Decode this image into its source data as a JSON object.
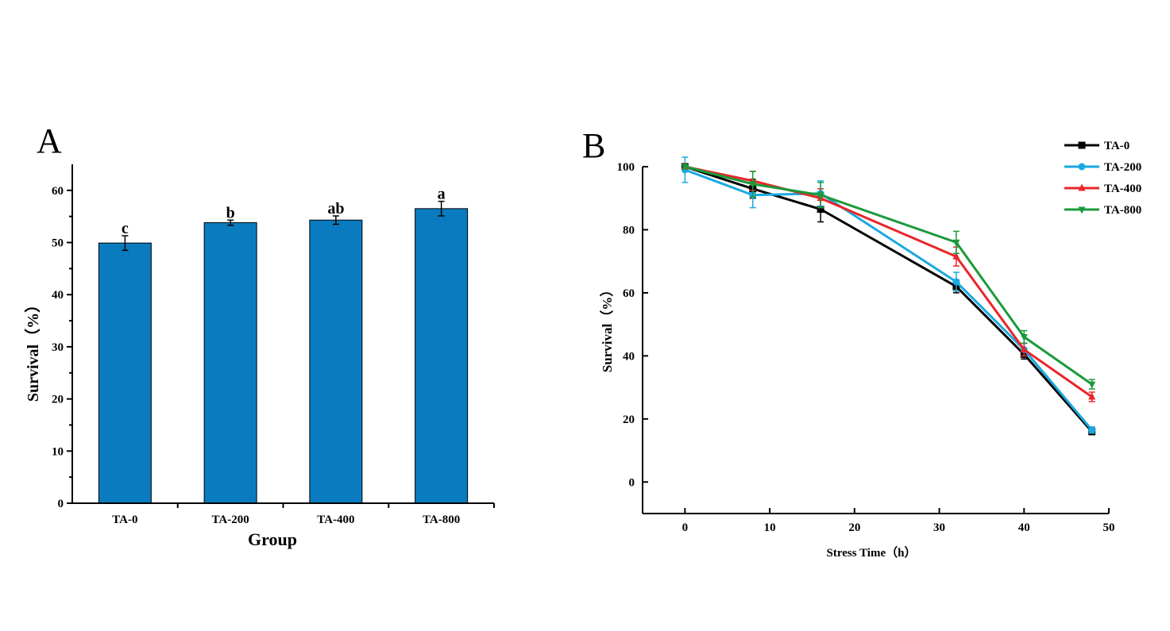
{
  "chart_data": [
    {
      "type": "bar",
      "panel": "A",
      "title": "",
      "xlabel": "Group",
      "ylabel": "Survival（%）",
      "ylim": [
        0,
        65
      ],
      "yticks": [
        0,
        10,
        20,
        30,
        40,
        50,
        60
      ],
      "categories": [
        "TA-0",
        "TA-200",
        "TA-400",
        "TA-800"
      ],
      "values": [
        49.9,
        53.8,
        54.3,
        56.5
      ],
      "errors": [
        1.4,
        0.5,
        0.8,
        1.4
      ],
      "significance": [
        "c",
        "b",
        "ab",
        "a"
      ],
      "bar_color": "#0a7bbf",
      "grid": false
    },
    {
      "type": "line",
      "panel": "B",
      "title": "",
      "xlabel": "Stress Time（h）",
      "ylabel": "Survival（%）",
      "xlim": [
        -5,
        50
      ],
      "ylim": [
        -10,
        100
      ],
      "xticks": [
        0,
        10,
        20,
        30,
        40,
        50
      ],
      "yticks": [
        0,
        20,
        40,
        60,
        80,
        100
      ],
      "x": [
        0,
        8,
        16,
        32,
        40,
        48
      ],
      "legend_position": "top-right",
      "grid": false,
      "series": [
        {
          "name": "TA-0",
          "color": "#000000",
          "marker": "square",
          "values": [
            100,
            93,
            86.5,
            62,
            40.5,
            16
          ],
          "errors": [
            0.5,
            3,
            4,
            2,
            1.5,
            1
          ]
        },
        {
          "name": "TA-200",
          "color": "#1aa9e0",
          "marker": "circle",
          "values": [
            99,
            91,
            91.5,
            63.5,
            42,
            16.5
          ],
          "errors": [
            4,
            4,
            4,
            3,
            2,
            1
          ]
        },
        {
          "name": "TA-400",
          "color": "#e8262a",
          "marker": "triangle-up",
          "values": [
            100,
            95.5,
            90,
            71.5,
            42,
            27
          ],
          "errors": [
            0.5,
            3,
            3,
            3,
            2,
            1.5
          ]
        },
        {
          "name": "TA-800",
          "color": "#1a9a3a",
          "marker": "triangle-down",
          "values": [
            100,
            94.5,
            91,
            76,
            46,
            31
          ],
          "errors": [
            0.5,
            4,
            4,
            3.5,
            2,
            1.5
          ]
        }
      ]
    }
  ]
}
